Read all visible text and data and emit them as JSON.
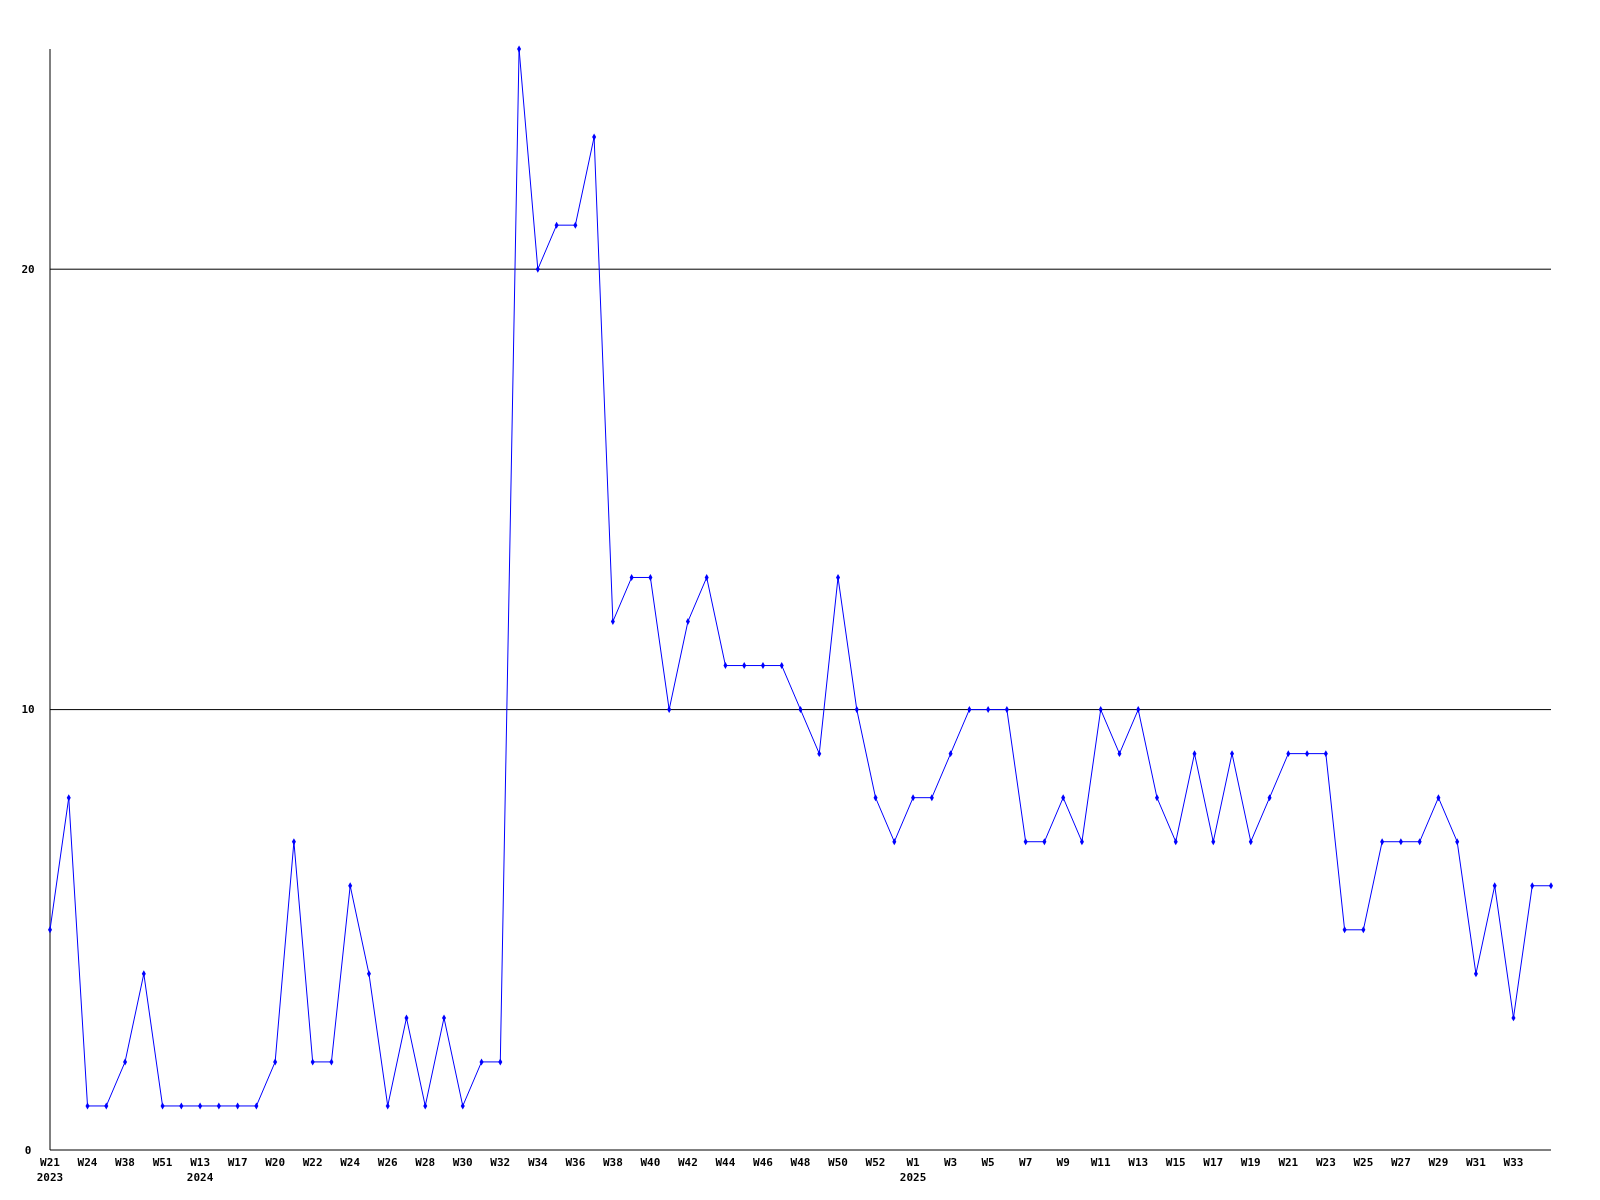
{
  "chart_data": {
    "type": "line",
    "categories": [
      "W21\n2023",
      null,
      "W24",
      null,
      "W38",
      null,
      "W51",
      null,
      "W13\n2024",
      null,
      "W17",
      null,
      "W20",
      null,
      "W22",
      null,
      "W24",
      null,
      "W26",
      null,
      "W28",
      null,
      "W30",
      null,
      "W32",
      null,
      "W34",
      null,
      "W36",
      null,
      "W38",
      null,
      "W40",
      null,
      "W42",
      null,
      "W44",
      null,
      "W46",
      null,
      "W48",
      null,
      "W50",
      null,
      "W52",
      null,
      "W1\n2025",
      null,
      "W3",
      null,
      "W5",
      null,
      "W7",
      null,
      "W9",
      null,
      "W11",
      null,
      "W13",
      null,
      "W15",
      null,
      "W17",
      null,
      "W19",
      null,
      "W21",
      null,
      "W23",
      null,
      "W25",
      null,
      "W27",
      null,
      "W29",
      null,
      "W31",
      null,
      "W33",
      null,
      null
    ],
    "series": [
      {
        "color": "#0000ff",
        "values": [
          5,
          8,
          1,
          1,
          2,
          4,
          1,
          1,
          1,
          1,
          1,
          1,
          2,
          7,
          2,
          2,
          6,
          4,
          1,
          3,
          1,
          3,
          1,
          2,
          2,
          25,
          20,
          21,
          21,
          23,
          12,
          13,
          13,
          10,
          12,
          13,
          11,
          11,
          11,
          11,
          10,
          9,
          13,
          10,
          8,
          7,
          8,
          8,
          9,
          10,
          10,
          10,
          7,
          7,
          8,
          7,
          10,
          9,
          10,
          8,
          7,
          9,
          7,
          9,
          7,
          8,
          9,
          9,
          9,
          5,
          5,
          7,
          7,
          7,
          8,
          7,
          4,
          6,
          3,
          6,
          6
        ]
      }
    ],
    "ylim": [
      0,
      25
    ],
    "yticks": [
      0,
      10,
      20
    ],
    "grid": "y",
    "marker": "diamond",
    "line_style": "solid"
  }
}
